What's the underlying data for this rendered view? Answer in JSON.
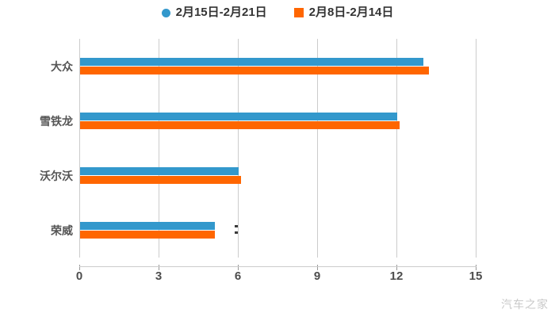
{
  "chart": {
    "legend": [
      {
        "label": "2月15日-2月21日",
        "color": "#3398cc",
        "marker": "circle"
      },
      {
        "label": "2月8日-2月14日",
        "color": "#ff6600",
        "marker": "square"
      }
    ],
    "watermark": "汽车之家"
  },
  "chart_data": {
    "type": "bar",
    "orientation": "horizontal",
    "title": "",
    "xlabel": "",
    "ylabel": "",
    "categories": [
      "大众",
      "雪铁龙",
      "沃尔沃",
      "荣威"
    ],
    "series": [
      {
        "name": "2月15日-2月21日",
        "color": "#3398cc",
        "values": [
          13,
          12,
          6,
          5.1
        ]
      },
      {
        "name": "2月8日-2月14日",
        "color": "#ff6600",
        "values": [
          13.2,
          12.1,
          6.1,
          5.1
        ]
      }
    ],
    "x_ticks": [
      0,
      3,
      6,
      9,
      12,
      15
    ],
    "xlim": [
      0,
      15
    ],
    "grid": true,
    "legend_position": "top"
  }
}
